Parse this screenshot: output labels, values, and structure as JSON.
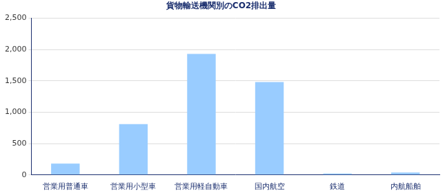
{
  "chart_data": {
    "type": "bar",
    "title": "貨物輸送機関別のCO2排出量",
    "categories": [
      "営業用普通車",
      "営業用小型車",
      "営業用軽自動車",
      "国内航空",
      "鉄道",
      "内航船舶"
    ],
    "values": [
      180,
      810,
      1930,
      1480,
      22,
      38
    ],
    "color": "#99ccff",
    "ylim": [
      0,
      2500
    ],
    "yticks": [
      0,
      500,
      {
        "value": 1000,
        "label": "1,000"
      },
      {
        "value": 1500,
        "label": "1,500"
      },
      {
        "value": 2000,
        "label": "2,000"
      },
      {
        "value": 2500,
        "label": "2,500"
      }
    ],
    "grid": true
  }
}
